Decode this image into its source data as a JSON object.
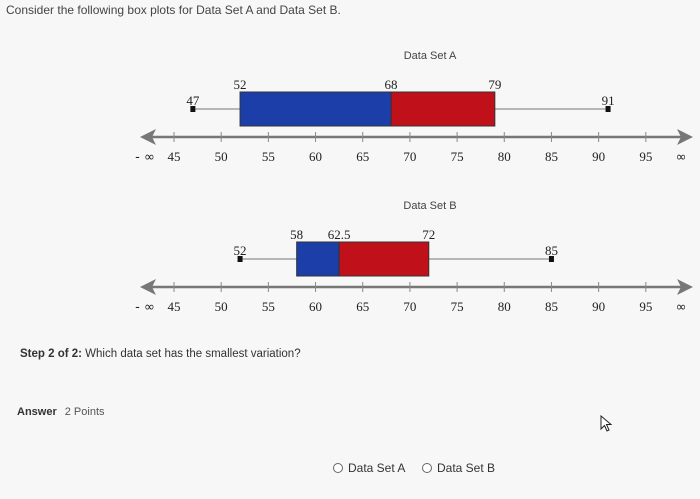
{
  "question": "Consider the following box plots for Data Set A and Data Set B.",
  "axis_ticks": [
    45,
    50,
    55,
    60,
    65,
    70,
    75,
    80,
    85,
    90,
    95
  ],
  "neg_inf": "- ∞",
  "pos_inf": "∞",
  "plotA": {
    "title": "Data Set A",
    "min": 47,
    "q1": 52,
    "median": 68,
    "q3": 79,
    "max": 91,
    "labels": [
      "47",
      "52",
      "68",
      "79",
      "91"
    ],
    "left_color": "#1c3ea8",
    "right_color": "#c0111b"
  },
  "plotB": {
    "title": "Data Set B",
    "min": 52,
    "q1": 58,
    "median": 62.5,
    "q3": 72,
    "max": 85,
    "labels": [
      "52",
      "58",
      "62.5",
      "72",
      "85"
    ],
    "left_color": "#1c3ea8",
    "right_color": "#c0111b"
  },
  "step": {
    "prefix": "Step 2 of 2:",
    "text": " Which data set has the smallest variation?"
  },
  "answer": {
    "label": "Answer",
    "points": "2 Points"
  },
  "options": [
    "Data Set A",
    "Data Set B"
  ],
  "cursor_icon": "mouse-pointer-icon"
}
